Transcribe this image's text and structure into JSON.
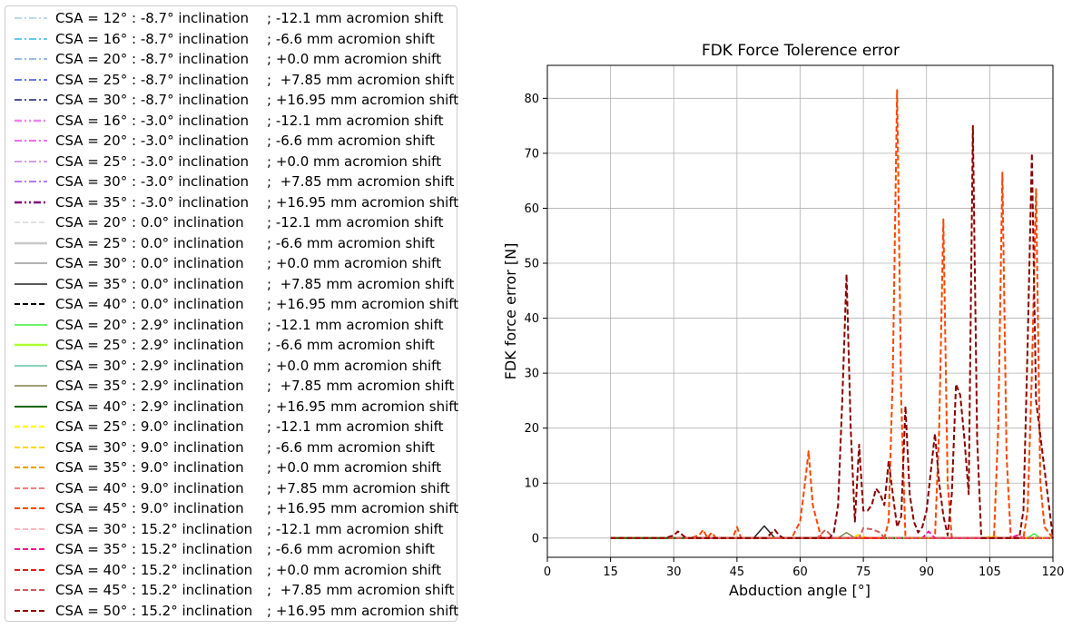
{
  "chart_data": {
    "type": "line",
    "title": "FDK Force Tolerence error",
    "xlabel": "Abduction angle [°]",
    "ylabel": "FDK force error [N]",
    "xlim": [
      0,
      120
    ],
    "ylim": [
      -3.5,
      86
    ],
    "xticks": [
      0,
      15,
      30,
      45,
      60,
      75,
      90,
      105,
      120
    ],
    "yticks": [
      0,
      10,
      20,
      30,
      40,
      50,
      60,
      70,
      80
    ],
    "grid": true,
    "legend_placement": "left, outside plot",
    "series": [
      {
        "name": "CSA = 12° : -8.7° inclination",
        "shift": "; -12.1 mm acromion shift",
        "color": "#a6cee3",
        "dash": "dashdot",
        "width": 1.5,
        "x": [
          15,
          120
        ],
        "y": [
          0,
          0
        ]
      },
      {
        "name": "CSA = 16° : -8.7° inclination",
        "shift": "; -6.6 mm acromion shift",
        "color": "#33b5e5",
        "dash": "dashdot",
        "width": 1.5,
        "x": [
          15,
          120
        ],
        "y": [
          0,
          0
        ]
      },
      {
        "name": "CSA = 20° : -8.7° inclination",
        "shift": "; +0.0 mm acromion shift",
        "color": "#7aa6d9",
        "dash": "dashdot",
        "width": 1.5,
        "x": [
          15,
          120
        ],
        "y": [
          0,
          0
        ]
      },
      {
        "name": "CSA = 25° : -8.7° inclination",
        "shift": ";  +7.85 mm acromion shift",
        "color": "#3a4bdc",
        "dash": "dashdot",
        "width": 1.5,
        "x": [
          15,
          120
        ],
        "y": [
          0,
          0
        ]
      },
      {
        "name": "CSA = 30° : -8.7° inclination",
        "shift": "; +16.95 mm acromion shift",
        "color": "#121f6b",
        "dash": "dashdot",
        "width": 1.5,
        "x": [
          15,
          120
        ],
        "y": [
          0,
          0
        ]
      },
      {
        "name": "CSA = 16° : -3.0° inclination",
        "shift": "; -12.1 mm acromion shift",
        "color": "#ee82ee",
        "dash": "dashdotdot",
        "width": 2.5,
        "x": [
          15,
          120
        ],
        "y": [
          0,
          0
        ]
      },
      {
        "name": "CSA = 20° : -3.0° inclination",
        "shift": "; -6.6 mm acromion shift",
        "color": "#e040e0",
        "dash": "dashdot",
        "width": 1.5,
        "x": [
          15,
          120
        ],
        "y": [
          0,
          0
        ]
      },
      {
        "name": "CSA = 25° : -3.0° inclination",
        "shift": "; +0.0 mm acromion shift",
        "color": "#c77ddb",
        "dash": "dashdot",
        "width": 1.5,
        "x": [
          15,
          120
        ],
        "y": [
          0,
          0
        ]
      },
      {
        "name": "CSA = 30° : -3.0° inclination",
        "shift": ";  +7.85 mm acromion shift",
        "color": "#9b4dfa",
        "dash": "dashdot",
        "width": 1.5,
        "x": [
          15,
          120
        ],
        "y": [
          0,
          0
        ]
      },
      {
        "name": "CSA = 35° : -3.0° inclination",
        "shift": "; +16.95 mm acromion shift",
        "color": "#800080",
        "dash": "dashdotdot",
        "width": 2.5,
        "x": [
          15,
          120
        ],
        "y": [
          0,
          0
        ]
      },
      {
        "name": "CSA = 20° : 0.0° inclination",
        "shift": "; -12.1 mm acromion shift",
        "color": "#d9d9d9",
        "dash": "dashed",
        "width": 1.5,
        "x": [
          15,
          120
        ],
        "y": [
          0,
          0
        ]
      },
      {
        "name": "CSA = 25° : 0.0° inclination",
        "shift": "; -6.6 mm acromion shift",
        "color": "#c8c8c8",
        "dash": "solid",
        "width": 2.5,
        "x": [
          15,
          120
        ],
        "y": [
          0,
          0
        ]
      },
      {
        "name": "CSA = 30° : 0.0° inclination",
        "shift": "; +0.0 mm acromion shift",
        "color": "#999999",
        "dash": "solid",
        "width": 1.5,
        "x": [
          15,
          120
        ],
        "y": [
          0,
          0
        ]
      },
      {
        "name": "CSA = 35° : 0.0° inclination",
        "shift": ";  +7.85 mm acromion shift",
        "color": "#222222",
        "dash": "solid",
        "width": 1.5,
        "x": [
          15,
          49,
          51.5,
          54,
          120
        ],
        "y": [
          0,
          0,
          2.2,
          0,
          0
        ]
      },
      {
        "name": "CSA = 40° : 0.0° inclination",
        "shift": "; +16.95 mm acromion shift",
        "color": "#000000",
        "dash": "dashed",
        "width": 2,
        "x": [
          15,
          120
        ],
        "y": [
          0,
          0
        ]
      },
      {
        "name": "CSA = 20° : 2.9° inclination",
        "shift": "; -12.1 mm acromion shift",
        "color": "#3cf03c",
        "dash": "solid",
        "width": 1.5,
        "x": [
          15,
          114,
          115.5,
          117,
          120
        ],
        "y": [
          0,
          0,
          0.8,
          0,
          0
        ]
      },
      {
        "name": "CSA = 25° : 2.9° inclination",
        "shift": "; -6.6 mm acromion shift",
        "color": "#adff2f",
        "dash": "solid",
        "width": 2.5,
        "x": [
          15,
          120
        ],
        "y": [
          0,
          0
        ]
      },
      {
        "name": "CSA = 30° : 2.9° inclination",
        "shift": "; +0.0 mm acromion shift",
        "color": "#66c2a5",
        "dash": "solid",
        "width": 1.5,
        "x": [
          15,
          120
        ],
        "y": [
          0,
          0
        ]
      },
      {
        "name": "CSA = 35° : 2.9° inclination",
        "shift": ";  +7.85 mm acromion shift",
        "color": "#7f7f4f",
        "dash": "solid",
        "width": 1.5,
        "x": [
          15,
          69,
          71,
          73,
          120
        ],
        "y": [
          0,
          0,
          1,
          0,
          0
        ]
      },
      {
        "name": "CSA = 40° : 2.9° inclination",
        "shift": "; +16.95 mm acromion shift",
        "color": "#006400",
        "dash": "solid",
        "width": 2,
        "x": [
          15,
          120
        ],
        "y": [
          0,
          0
        ]
      },
      {
        "name": "CSA = 25° : 9.0° inclination",
        "shift": "; -12.1 mm acromion shift",
        "color": "#ffff00",
        "dash": "dashed",
        "width": 2.5,
        "x": [
          15,
          120
        ],
        "y": [
          0,
          0
        ]
      },
      {
        "name": "CSA = 30° : 9.0° inclination",
        "shift": "; -6.6 mm acromion shift",
        "color": "#ffd700",
        "dash": "dashed",
        "width": 2,
        "x": [
          15,
          72,
          74,
          76,
          104,
          105.5,
          107,
          120
        ],
        "y": [
          0,
          0,
          0.6,
          0,
          0,
          0.5,
          0,
          0
        ]
      },
      {
        "name": "CSA = 35° : 9.0° inclination",
        "shift": "; +0.0 mm acromion shift",
        "color": "#e6a000",
        "dash": "dashed",
        "width": 2,
        "x": [
          15,
          120
        ],
        "y": [
          0,
          0
        ]
      },
      {
        "name": "CSA = 40° : 9.0° inclination",
        "shift": "; +7.85 mm acromion shift",
        "color": "#f08080",
        "dash": "dashed",
        "width": 2,
        "x": [
          15,
          120
        ],
        "y": [
          0,
          0
        ]
      },
      {
        "name": "CSA = 45° : 9.0° inclination",
        "shift": "; +16.95 mm acromion shift",
        "color": "#ff4500",
        "dash": "dashed",
        "width": 2,
        "x": [
          15,
          34,
          36,
          37,
          38,
          39,
          40,
          44,
          45,
          46,
          48,
          58,
          60,
          61,
          62,
          63,
          65,
          80,
          81,
          82,
          83,
          84,
          85,
          92,
          93,
          94,
          95,
          96,
          106,
          107,
          108,
          109,
          110,
          113,
          114,
          115,
          116,
          117,
          118,
          120
        ],
        "y": [
          0,
          0,
          0.5,
          1.5,
          0,
          1,
          0,
          0,
          2,
          0,
          0,
          0,
          3,
          9,
          15.8,
          6,
          0,
          0,
          3,
          30,
          81.5,
          25,
          0,
          0,
          20,
          58,
          10,
          0,
          0,
          20,
          66.5,
          15,
          0,
          0,
          5,
          30,
          63.5,
          10,
          2,
          0
        ]
      },
      {
        "name": "CSA = 30° : 15.2° inclination",
        "shift": "; -12.1 mm acromion shift",
        "color": "#ffb6c1",
        "dash": "dashed",
        "width": 2,
        "x": [
          15,
          120
        ],
        "y": [
          0,
          0
        ]
      },
      {
        "name": "CSA = 35° : 15.2° inclination",
        "shift": "; -6.6 mm acromion shift",
        "color": "#ff1493",
        "dash": "dashed",
        "width": 2,
        "x": [
          15,
          89,
          90.5,
          92,
          110,
          111.5,
          113,
          120
        ],
        "y": [
          0,
          0,
          1.2,
          0,
          0,
          0.5,
          0,
          0
        ]
      },
      {
        "name": "CSA = 40° : 15.2° inclination",
        "shift": "; +0.0 mm acromion shift",
        "color": "#e31a1c",
        "dash": "dashed",
        "width": 2,
        "x": [
          15,
          120
        ],
        "y": [
          0,
          0
        ]
      },
      {
        "name": "CSA = 45° : 15.2° inclination",
        "shift": ";  +7.85 mm acromion shift",
        "color": "#cd5c5c",
        "dash": "dashed",
        "width": 2,
        "x": [
          15,
          64,
          66,
          68,
          74,
          75,
          77,
          79,
          80,
          120
        ],
        "y": [
          0,
          0,
          1.5,
          0,
          0,
          1.8,
          1.6,
          1,
          0,
          0
        ]
      },
      {
        "name": "CSA = 50° : 15.2° inclination",
        "shift": "; +16.95 mm acromion shift",
        "color": "#8b0000",
        "dash": "dashed",
        "width": 2,
        "x": [
          15,
          28,
          30,
          31,
          32,
          33,
          34,
          52,
          53,
          54,
          55,
          56,
          67,
          68,
          69,
          70,
          71,
          72,
          73,
          74,
          75,
          76,
          77,
          78,
          79,
          80,
          81,
          82,
          83,
          84,
          85,
          86,
          87,
          88,
          89,
          90,
          91,
          92,
          93,
          94,
          95,
          96,
          97,
          98,
          99,
          100,
          101,
          102,
          103,
          112,
          113,
          114,
          115,
          116,
          120
        ],
        "y": [
          0,
          0,
          0.5,
          1.2,
          0.6,
          0,
          0,
          0,
          0.8,
          1.5,
          0.5,
          0,
          0,
          1,
          6,
          25,
          48,
          20,
          3,
          17,
          5,
          5,
          6,
          9,
          8,
          6,
          14,
          8,
          2,
          4,
          24,
          8,
          3,
          1,
          2,
          5,
          12,
          19,
          10,
          4,
          0.5,
          8,
          28,
          26,
          18,
          8,
          75,
          18,
          0,
          0,
          5,
          35,
          70,
          25,
          0
        ]
      }
    ]
  }
}
